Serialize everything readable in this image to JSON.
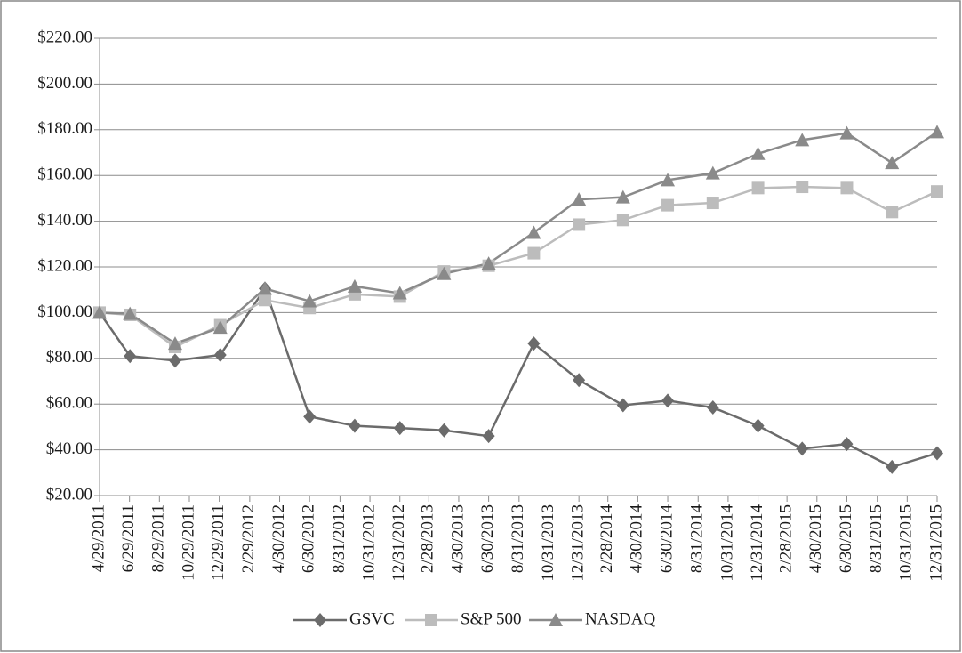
{
  "chart_data": {
    "type": "line",
    "x": [
      "2011-04-29",
      "2011-06-30",
      "2011-09-30",
      "2011-12-31",
      "2012-03-31",
      "2012-06-30",
      "2012-09-30",
      "2012-12-31",
      "2013-03-31",
      "2013-06-30",
      "2013-09-30",
      "2013-12-31",
      "2014-03-31",
      "2014-06-30",
      "2014-09-30",
      "2014-12-31",
      "2015-03-31",
      "2015-06-30",
      "2015-09-30",
      "2015-12-31"
    ],
    "series": [
      {
        "name": "GSVC",
        "color": "#6b6b6b",
        "marker": "diamond",
        "values": [
          100,
          81,
          79,
          81.5,
          110.5,
          54.5,
          50.5,
          49.5,
          48.5,
          46,
          86.5,
          70.5,
          59.5,
          61.5,
          58.5,
          50.5,
          40.5,
          42.5,
          32.5,
          38.5
        ]
      },
      {
        "name": "S&P 500",
        "color": "#bcbcbc",
        "marker": "square",
        "values": [
          100,
          99,
          85,
          94.5,
          105.5,
          102,
          108,
          107,
          118,
          120.5,
          126,
          138.5,
          140.5,
          147,
          148,
          154.5,
          155,
          154.5,
          144,
          153
        ]
      },
      {
        "name": "NASDAQ",
        "color": "#8a8a8a",
        "marker": "triangle",
        "values": [
          100,
          99.5,
          86.5,
          93.5,
          110.5,
          105,
          111.5,
          108.5,
          117,
          121.5,
          135,
          149.5,
          150.5,
          158,
          161,
          169.5,
          175.5,
          178.5,
          165.5,
          179
        ]
      }
    ],
    "xlim": [
      "2011-04-29",
      "2015-12-31"
    ],
    "xticks": [
      {
        "value": "2011-04-29",
        "label": "4/29/2011"
      },
      {
        "value": "2011-06-29",
        "label": "6/29/2011"
      },
      {
        "value": "2011-08-29",
        "label": "8/29/2011"
      },
      {
        "value": "2011-10-29",
        "label": "10/29/2011"
      },
      {
        "value": "2011-12-29",
        "label": "12/29/2011"
      },
      {
        "value": "2012-02-29",
        "label": "2/29/2012"
      },
      {
        "value": "2012-04-30",
        "label": "4/30/2012"
      },
      {
        "value": "2012-06-30",
        "label": "6/30/2012"
      },
      {
        "value": "2012-08-31",
        "label": "8/31/2012"
      },
      {
        "value": "2012-10-31",
        "label": "10/31/2012"
      },
      {
        "value": "2012-12-31",
        "label": "12/31/2012"
      },
      {
        "value": "2013-02-28",
        "label": "2/28/2013"
      },
      {
        "value": "2013-04-30",
        "label": "4/30/2013"
      },
      {
        "value": "2013-06-30",
        "label": "6/30/2013"
      },
      {
        "value": "2013-08-31",
        "label": "8/31/2013"
      },
      {
        "value": "2013-10-31",
        "label": "10/31/2013"
      },
      {
        "value": "2013-12-31",
        "label": "12/31/2013"
      },
      {
        "value": "2014-02-28",
        "label": "2/28/2014"
      },
      {
        "value": "2014-04-30",
        "label": "4/30/2014"
      },
      {
        "value": "2014-06-30",
        "label": "6/30/2014"
      },
      {
        "value": "2014-08-31",
        "label": "8/31/2014"
      },
      {
        "value": "2014-10-31",
        "label": "10/31/2014"
      },
      {
        "value": "2014-12-31",
        "label": "12/31/2014"
      },
      {
        "value": "2015-02-28",
        "label": "2/28/2015"
      },
      {
        "value": "2015-04-30",
        "label": "4/30/2015"
      },
      {
        "value": "2015-06-30",
        "label": "6/30/2015"
      },
      {
        "value": "2015-08-31",
        "label": "8/31/2015"
      },
      {
        "value": "2015-10-31",
        "label": "10/31/2015"
      },
      {
        "value": "2015-12-31",
        "label": "12/31/2015"
      }
    ],
    "ylim": [
      20,
      220
    ],
    "yticks": [
      {
        "value": 20,
        "label": "$20.00"
      },
      {
        "value": 40,
        "label": "$40.00"
      },
      {
        "value": 60,
        "label": "$60.00"
      },
      {
        "value": 80,
        "label": "$80.00"
      },
      {
        "value": 100,
        "label": "$100.00"
      },
      {
        "value": 120,
        "label": "$120.00"
      },
      {
        "value": 140,
        "label": "$140.00"
      },
      {
        "value": 160,
        "label": "$160.00"
      },
      {
        "value": 180,
        "label": "$180.00"
      },
      {
        "value": 200,
        "label": "$200.00"
      },
      {
        "value": 220,
        "label": "$220.00"
      }
    ],
    "grid": true,
    "legend": "bottom"
  }
}
